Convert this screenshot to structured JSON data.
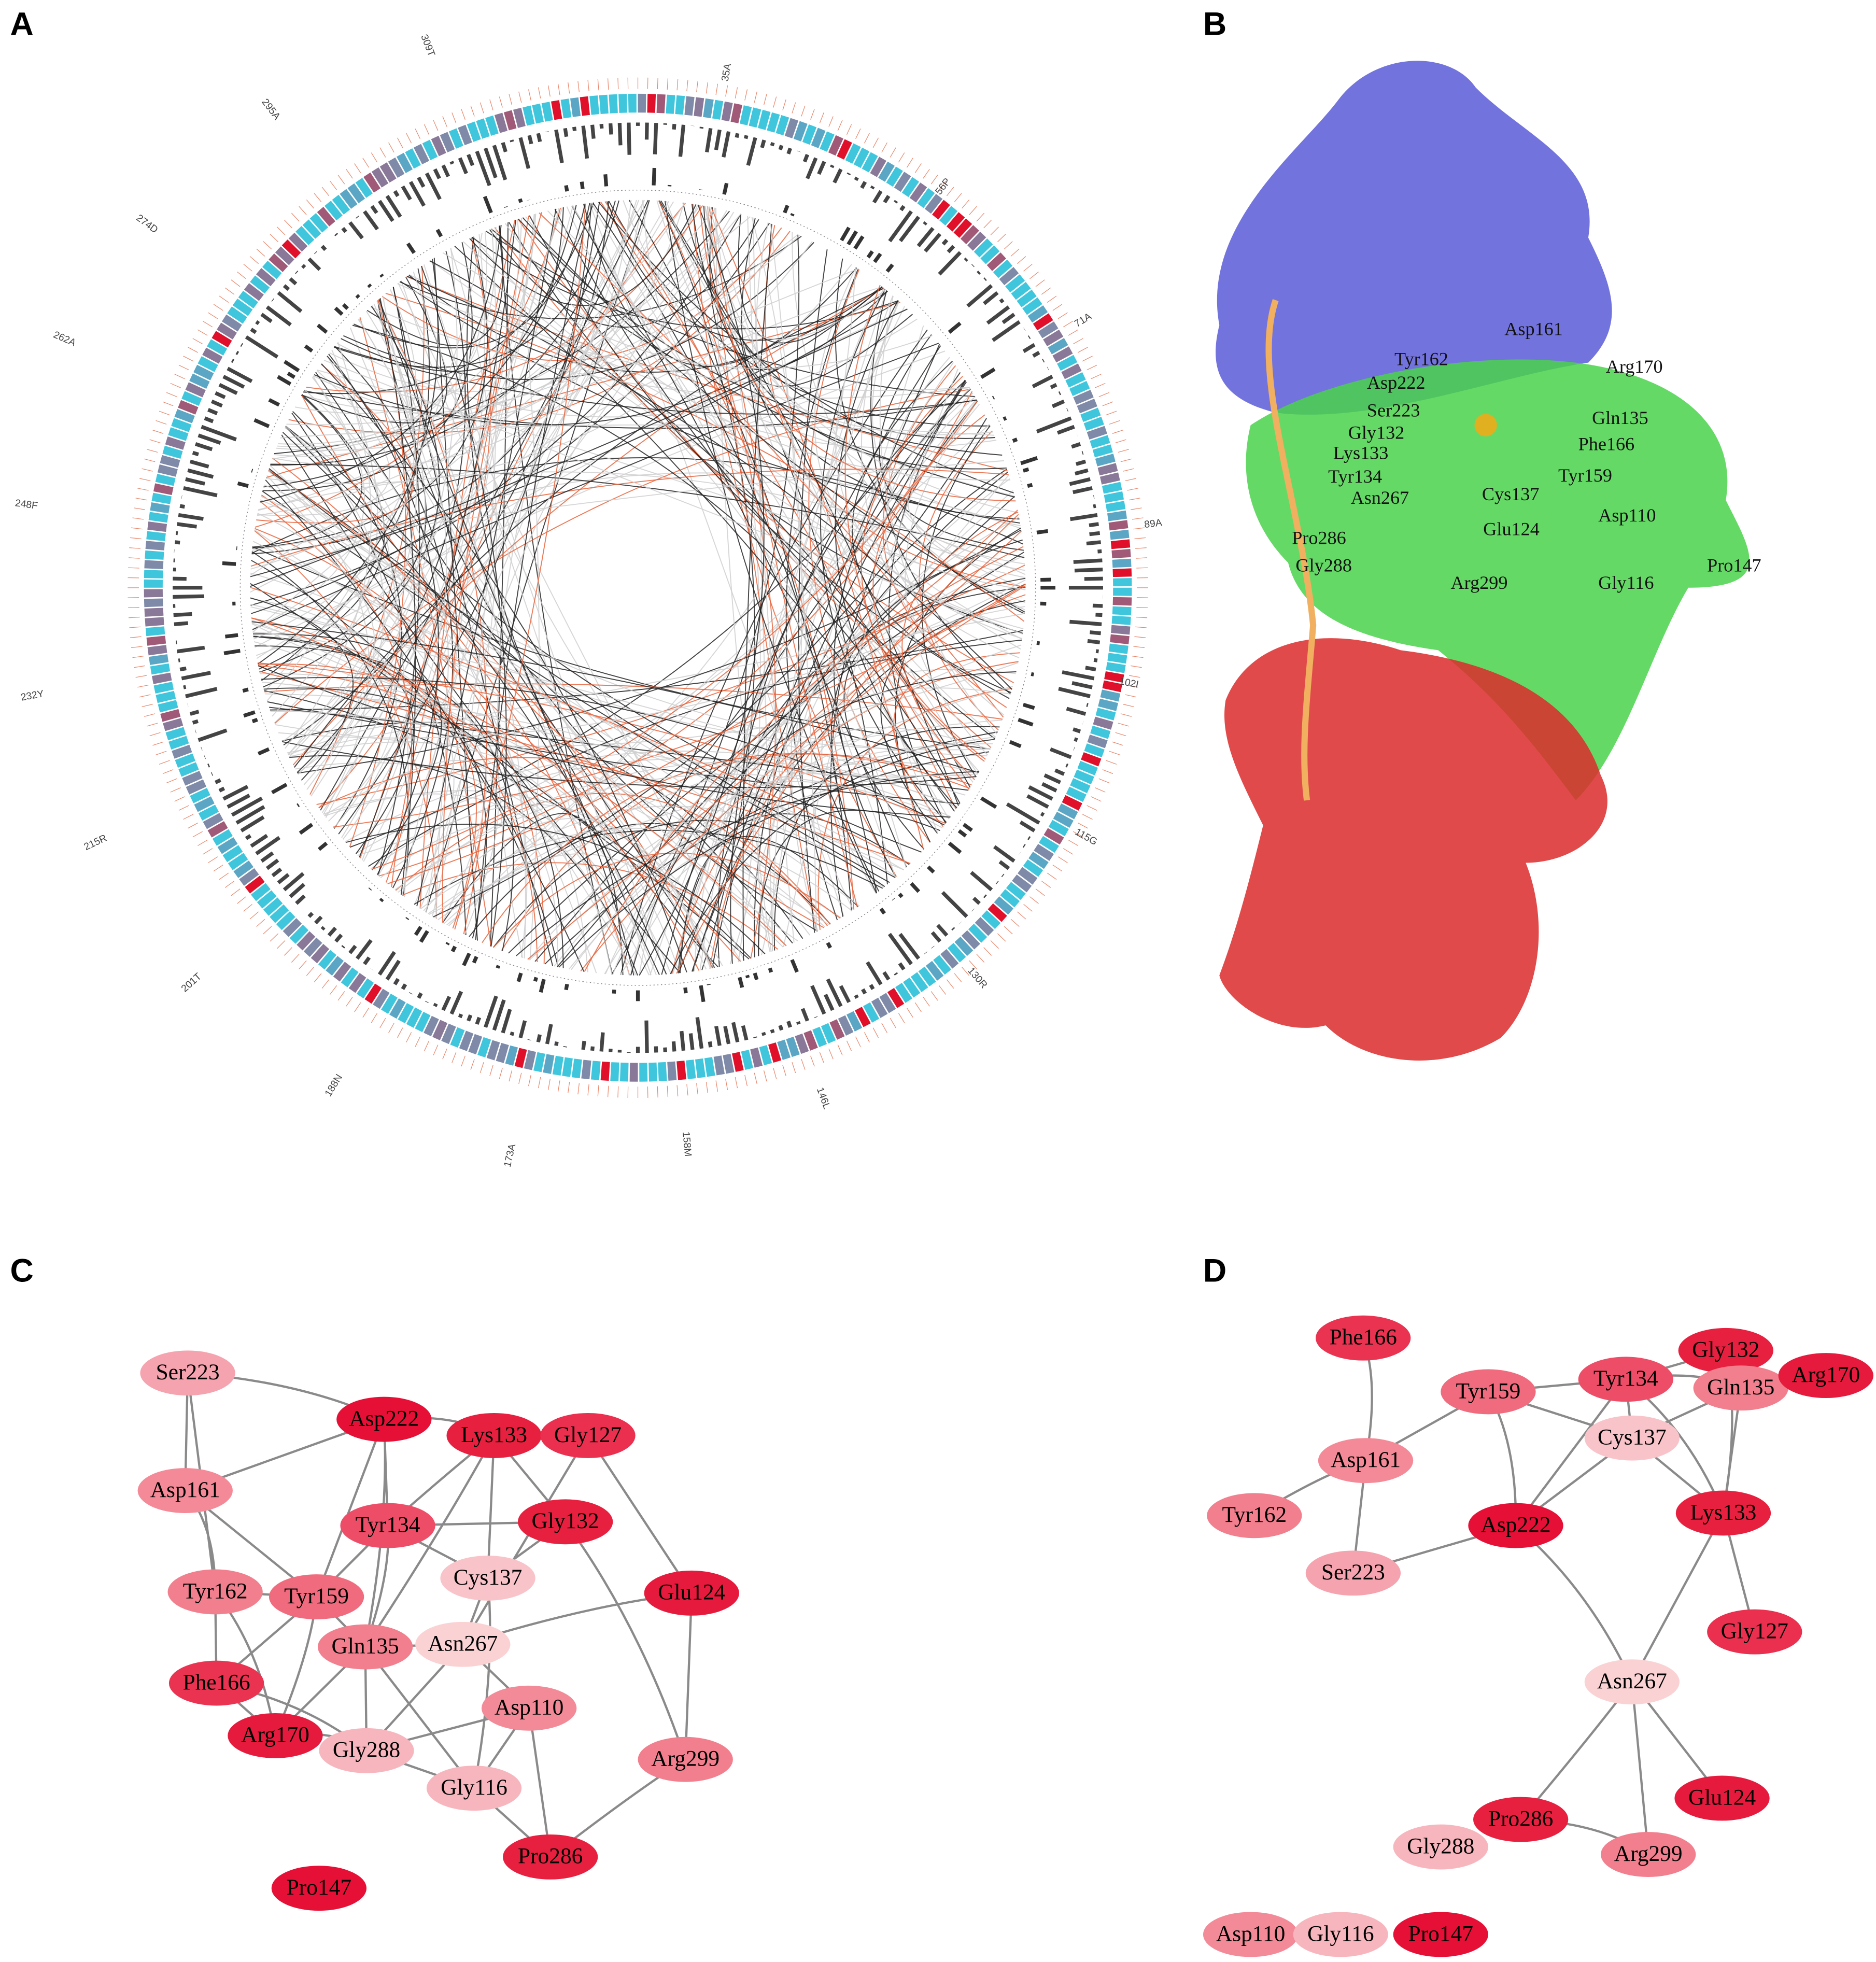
{
  "panels": [
    {
      "label": "A",
      "circos_labels": [
        "309T",
        "35A",
        "56P",
        "71A",
        "89A",
        "102I",
        "115G",
        "130R",
        "146L",
        "158M",
        "173A",
        "188N",
        "201T",
        "215R",
        "232Y",
        "248F",
        "262A",
        "274D",
        "295A"
      ]
    },
    {
      "label": "B",
      "residue_labels": [
        "Asp161",
        "Tyr162",
        "Arg170",
        "Asp222",
        "Gln135",
        "Ser223",
        "Gly132",
        "Phe166",
        "Lys133",
        "Tyr159",
        "Tyr134",
        "Cys137",
        "Asn267",
        "Asp110",
        "Glu124",
        "Pro286",
        "Pro147",
        "Gly288",
        "Arg299",
        "Gly116"
      ]
    },
    {
      "label": "C",
      "nodes": [
        {
          "label": "Ser223",
          "color": "#f5a3ae"
        },
        {
          "label": "Asp222",
          "color": "#e60f36"
        },
        {
          "label": "Lys133",
          "color": "#e8203f"
        },
        {
          "label": "Gly127",
          "color": "#ea2f4f"
        },
        {
          "label": "Asp161",
          "color": "#f48a98"
        },
        {
          "label": "Tyr134",
          "color": "#ee4d67"
        },
        {
          "label": "Gly132",
          "color": "#e8203f"
        },
        {
          "label": "Cys137",
          "color": "#f9c4c9"
        },
        {
          "label": "Glu124",
          "color": "#e61a3c"
        },
        {
          "label": "Tyr162",
          "color": "#f27f8e"
        },
        {
          "label": "Tyr159",
          "color": "#f06b7d"
        },
        {
          "label": "Gln135",
          "color": "#f27f8e"
        },
        {
          "label": "Asn267",
          "color": "#fbd2d4"
        },
        {
          "label": "Phe166",
          "color": "#ea3350"
        },
        {
          "label": "Asp110",
          "color": "#f28a98"
        },
        {
          "label": "Arg170",
          "color": "#e61a3c"
        },
        {
          "label": "Gly288",
          "color": "#f7b6be"
        },
        {
          "label": "Arg299",
          "color": "#f27f8e"
        },
        {
          "label": "Gly116",
          "color": "#f7b6be"
        },
        {
          "label": "Pro286",
          "color": "#e8203f"
        },
        {
          "label": "Pro147",
          "color": "#e60f36"
        }
      ]
    },
    {
      "label": "D",
      "nodes": [
        {
          "label": "Phe166",
          "color": "#ea3350"
        },
        {
          "label": "Tyr159",
          "color": "#f06b7d"
        },
        {
          "label": "Tyr134",
          "color": "#ee4d67"
        },
        {
          "label": "Gly132",
          "color": "#e8203f"
        },
        {
          "label": "Gln135",
          "color": "#f27f8e"
        },
        {
          "label": "Arg170",
          "color": "#e61a3c"
        },
        {
          "label": "Cys137",
          "color": "#f9c4c9"
        },
        {
          "label": "Asp161",
          "color": "#f48a98"
        },
        {
          "label": "Lys133",
          "color": "#e8203f"
        },
        {
          "label": "Tyr162",
          "color": "#f27f8e"
        },
        {
          "label": "Asp222",
          "color": "#e60f36"
        },
        {
          "label": "Ser223",
          "color": "#f5a3ae"
        },
        {
          "label": "Gly127",
          "color": "#ea2f4f"
        },
        {
          "label": "Asn267",
          "color": "#fbd2d4"
        },
        {
          "label": "Glu124",
          "color": "#e61a3c"
        },
        {
          "label": "Pro286",
          "color": "#e8203f"
        },
        {
          "label": "Gly288",
          "color": "#f7b6be"
        },
        {
          "label": "Arg299",
          "color": "#f27f8e"
        },
        {
          "label": "Asp110",
          "color": "#f28a98"
        },
        {
          "label": "Gly116",
          "color": "#f7b6be"
        },
        {
          "label": "Pro147",
          "color": "#e60f36"
        }
      ]
    }
  ]
}
